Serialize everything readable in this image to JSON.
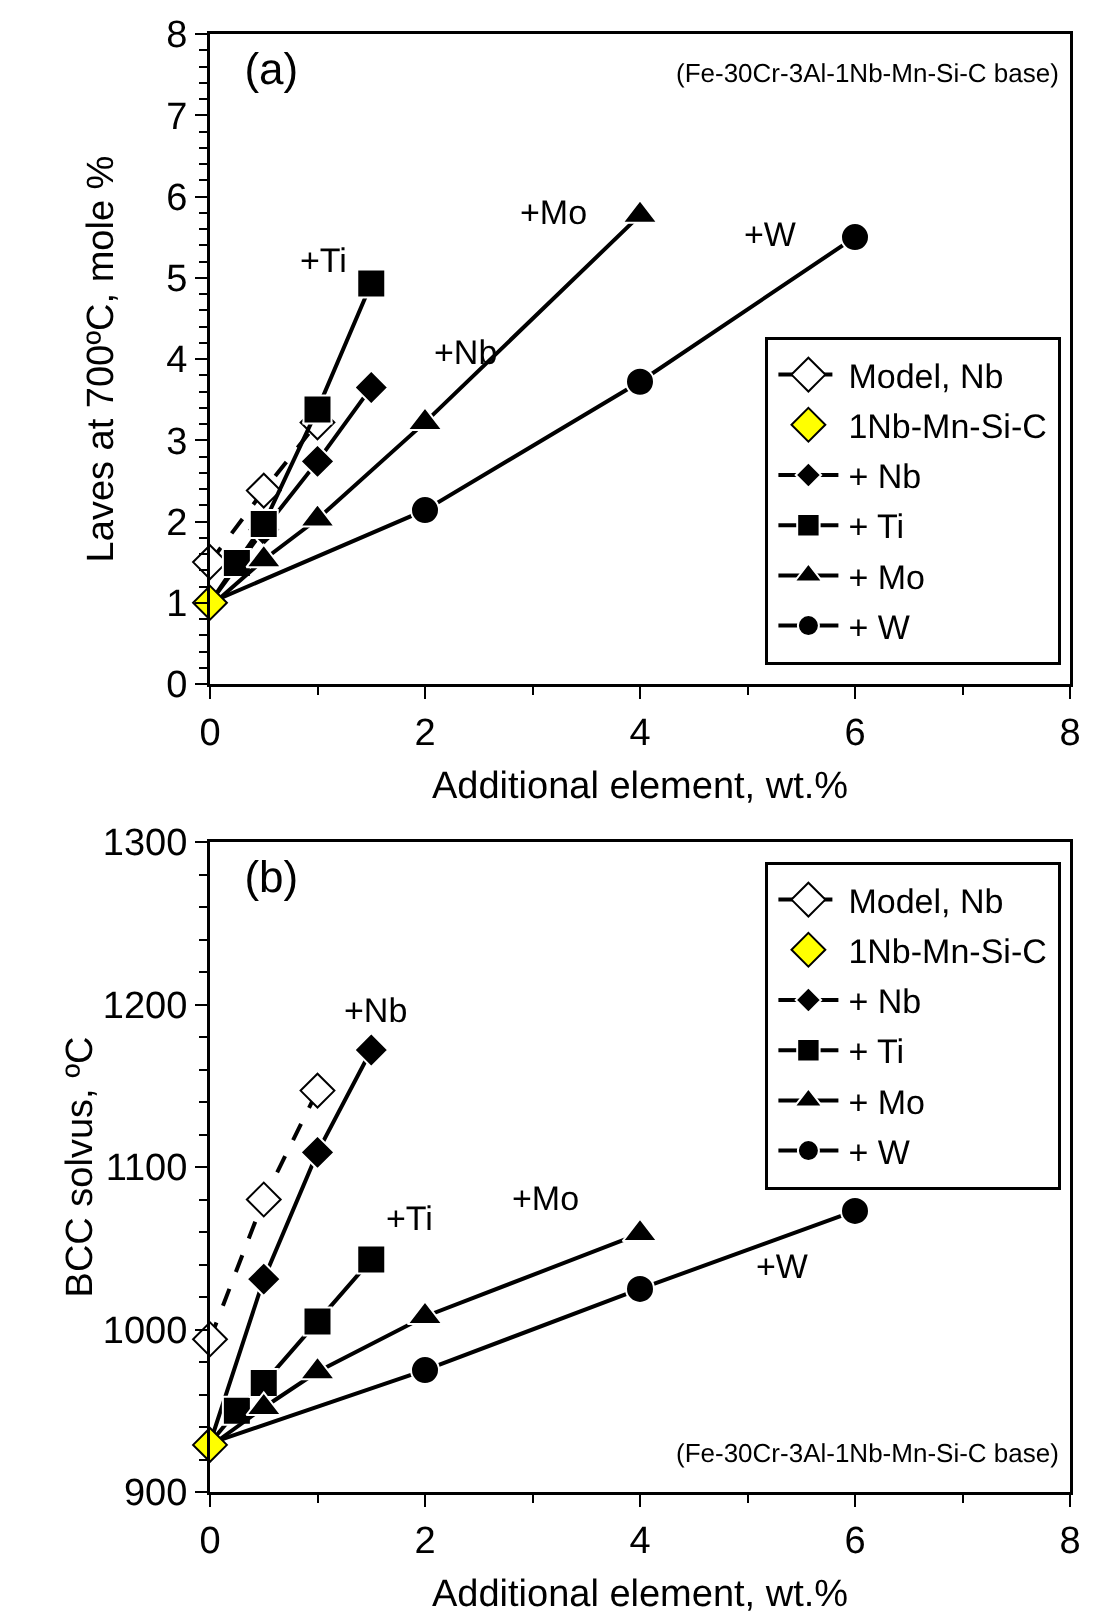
{
  "chart_data": [
    {
      "type": "line",
      "title": "(a)",
      "xlabel": "Additional element, wt.%",
      "ylabel": "Laves at 700ºC, mole %",
      "xlim": [
        0,
        8
      ],
      "xticks": [
        0,
        2,
        4,
        6,
        8
      ],
      "ylim": [
        0,
        8
      ],
      "yticks": [
        0,
        1,
        2,
        3,
        4,
        5,
        6,
        7,
        8
      ],
      "grid": false,
      "legend": "bottom right",
      "annotations": [
        "(Fe-30Cr-3Al-1Nb-Mn-Si-C base)",
        "+Ti",
        "+Nb",
        "+Mo",
        "+W"
      ],
      "series": [
        {
          "name": "Model, Nb",
          "color": "#000000",
          "colors": [
            "#ffffff",
            "#ffffff",
            "#ffffff"
          ],
          "marker": "diamond",
          "line_style": "dashed",
          "x": [
            0,
            0.5,
            1
          ],
          "values": [
            1.5,
            2.38,
            3.22
          ]
        },
        {
          "name": "1Nb-Mn-Si-C",
          "type": "scatter",
          "color": "#ffff00",
          "marker": "diamond",
          "x": [
            0
          ],
          "values": [
            1
          ]
        },
        {
          "name": "+ Nb",
          "color": "#000000",
          "marker": "diamond",
          "line_style": "solid",
          "x": [
            0,
            0.5,
            1,
            1.5
          ],
          "values": [
            1,
            1.9,
            2.74,
            3.65
          ]
        },
        {
          "name": "+ Ti",
          "color": "#000000",
          "marker": "square",
          "line_style": "solid",
          "x": [
            0,
            0.25,
            0.5,
            1,
            1.5
          ],
          "values": [
            1,
            1.49,
            1.97,
            3.38,
            4.93
          ]
        },
        {
          "name": "+ Mo",
          "color": "#000000",
          "marker": "triangle",
          "line_style": "solid",
          "x": [
            0,
            0.5,
            1,
            2,
            4
          ],
          "values": [
            0.95,
            1.53,
            2.03,
            3.22,
            5.77
          ]
        },
        {
          "name": "+ W",
          "color": "#000000",
          "marker": "circle",
          "line_style": "solid",
          "x": [
            0,
            2,
            4,
            6
          ],
          "values": [
            1,
            2.14,
            3.72,
            5.5
          ]
        }
      ]
    },
    {
      "type": "line",
      "title": "(b)",
      "xlabel": "Additional element, wt.%",
      "ylabel": "BCC solvus, ºC",
      "xlim": [
        0,
        8
      ],
      "xticks": [
        0,
        2,
        4,
        6,
        8
      ],
      "ylim": [
        900,
        1300
      ],
      "yticks": [
        900,
        1000,
        1100,
        1200,
        1300
      ],
      "grid": false,
      "legend": "top right",
      "annotations": [
        "(Fe-30Cr-3Al-1Nb-Mn-Si-C base)",
        "+Nb",
        "+Ti",
        "+Mo",
        "+W"
      ],
      "series": [
        {
          "name": "Model, Nb",
          "color": "#000000",
          "colors": [
            "#ffffff",
            "#ffffff",
            "#ffffff"
          ],
          "marker": "diamond",
          "line_style": "dashed",
          "x": [
            0,
            0.5,
            1
          ],
          "values": [
            994,
            1080,
            1147
          ]
        },
        {
          "name": "1Nb-Mn-Si-C",
          "type": "scatter",
          "color": "#ffff00",
          "marker": "diamond",
          "x": [
            0
          ],
          "values": [
            929
          ]
        },
        {
          "name": "+ Nb",
          "color": "#000000",
          "marker": "diamond",
          "line_style": "solid",
          "x": [
            0,
            0.5,
            1,
            1.5
          ],
          "values": [
            930,
            1031,
            1109,
            1172
          ]
        },
        {
          "name": "+ Ti",
          "color": "#000000",
          "marker": "square",
          "line_style": "solid",
          "x": [
            0,
            0.25,
            0.5,
            1,
            1.5
          ],
          "values": [
            930,
            950,
            967,
            1005,
            1043
          ]
        },
        {
          "name": "+ Mo",
          "color": "#000000",
          "marker": "triangle",
          "line_style": "solid",
          "x": [
            0,
            0.5,
            1,
            2,
            4
          ],
          "values": [
            928,
            952,
            974,
            1008,
            1059
          ]
        },
        {
          "name": "+ W",
          "color": "#000000",
          "marker": "circle",
          "line_style": "solid",
          "x": [
            0,
            2,
            4,
            6
          ],
          "values": [
            930,
            975,
            1025,
            1073
          ]
        }
      ]
    }
  ]
}
